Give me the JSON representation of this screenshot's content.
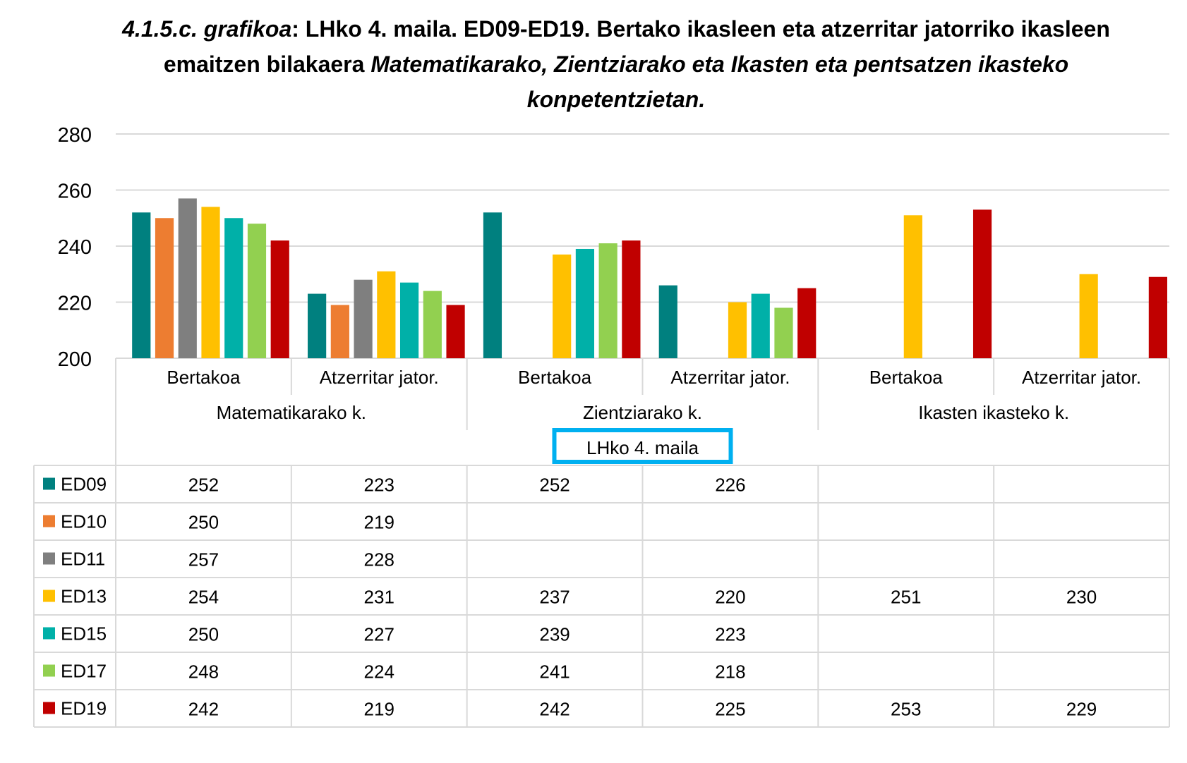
{
  "chart_data": {
    "type": "bar",
    "title_parts": {
      "italic1": "4.1.5.c. grafikoa",
      "normal": ": LHko 4. maila. ED09-ED19. Bertako ikasleen eta atzerritar jatorriko ikasleen emaitzen bilakaera ",
      "italic2": "Matematikarako, Zientziarako eta Ikasten eta pentsatzen ikasteko konpetentzietan."
    },
    "ylim": [
      200,
      280
    ],
    "yticks": [
      200,
      220,
      240,
      260,
      280
    ],
    "grid": true,
    "groups": [
      "Matematikarako k.",
      "Zientziarako k.",
      "Ikasten ikasteko k."
    ],
    "categories": [
      "Bertakoa",
      "Atzerritar jator.",
      "Bertakoa",
      "Atzerritar jator.",
      "Bertakoa",
      "Atzerritar jator."
    ],
    "level_label": "LHko 4. maila",
    "series": [
      {
        "name": "ED09",
        "color": "#00807F",
        "values": [
          252,
          223,
          252,
          226,
          null,
          null
        ]
      },
      {
        "name": "ED10",
        "color": "#ED7D31",
        "values": [
          250,
          219,
          null,
          null,
          null,
          null
        ]
      },
      {
        "name": "ED11",
        "color": "#7F7F7F",
        "values": [
          257,
          228,
          null,
          null,
          null,
          null
        ]
      },
      {
        "name": "ED13",
        "color": "#FFC000",
        "values": [
          254,
          231,
          237,
          220,
          251,
          230
        ]
      },
      {
        "name": "ED15",
        "color": "#00B0A8",
        "values": [
          250,
          227,
          239,
          223,
          null,
          null
        ]
      },
      {
        "name": "ED17",
        "color": "#92D050",
        "values": [
          248,
          224,
          241,
          218,
          null,
          null
        ]
      },
      {
        "name": "ED19",
        "color": "#C00000",
        "values": [
          242,
          219,
          242,
          225,
          253,
          229
        ]
      }
    ],
    "level_box_color": "#00B0F0"
  }
}
